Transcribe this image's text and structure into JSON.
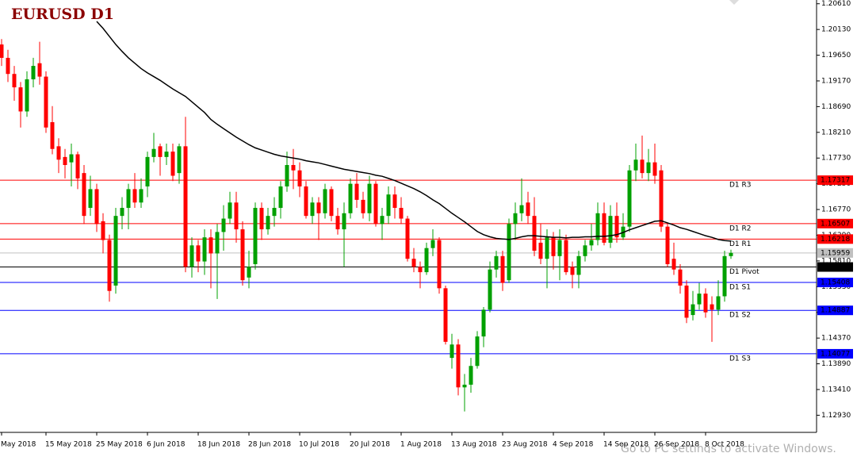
{
  "chart_data": {
    "type": "candlestick",
    "title": "EURUSD D1",
    "watermark": "Go to PC settings to activate Windows.",
    "categories": [
      "May 2018",
      null,
      null,
      null,
      null,
      null,
      null,
      "15 May 2018",
      null,
      null,
      null,
      null,
      null,
      null,
      null,
      "25 May 2018",
      null,
      null,
      null,
      null,
      null,
      null,
      null,
      "6 Jun 2018",
      null,
      null,
      null,
      null,
      null,
      null,
      null,
      "18 Jun 2018",
      null,
      null,
      null,
      null,
      null,
      null,
      null,
      "28 Jun 2018",
      null,
      null,
      null,
      null,
      null,
      null,
      null,
      "10 Jul 2018",
      null,
      null,
      null,
      null,
      null,
      null,
      null,
      "20 Jul 2018",
      null,
      null,
      null,
      null,
      null,
      null,
      null,
      "1 Aug 2018",
      null,
      null,
      null,
      null,
      null,
      null,
      null,
      "13 Aug 2018",
      null,
      null,
      null,
      null,
      null,
      null,
      null,
      "23 Aug 2018",
      null,
      null,
      null,
      null,
      null,
      null,
      null,
      "4 Sep 2018",
      null,
      null,
      null,
      null,
      null,
      null,
      null,
      "14 Sep 2018",
      null,
      null,
      null,
      null,
      null,
      null,
      null,
      "26 Sep 2018",
      null,
      null,
      null,
      null,
      null,
      null,
      null,
      "8 Oct 2018",
      null,
      null,
      null,
      null
    ],
    "candles": {
      "up_color": "#00a000",
      "down_color": "#ff0000",
      "open": [
        1.1985,
        1.196,
        1.193,
        1.1905,
        1.186,
        1.192,
        1.195,
        1.1925,
        1.184,
        1.1795,
        1.1775,
        1.1765,
        1.178,
        1.1745,
        1.168,
        1.1715,
        1.1655,
        1.162,
        1.1535,
        1.1665,
        1.168,
        1.1715,
        1.169,
        1.172,
        1.1775,
        1.1795,
        1.1775,
        1.1785,
        1.1745,
        1.1795,
        1.157,
        1.161,
        1.158,
        1.1625,
        1.1595,
        1.1635,
        1.166,
        1.169,
        1.164,
        1.155,
        1.1575,
        1.168,
        1.164,
        1.1665,
        1.168,
        1.172,
        1.176,
        1.175,
        1.172,
        1.1665,
        1.169,
        1.167,
        1.1715,
        1.1665,
        1.164,
        1.167,
        1.1725,
        1.1695,
        1.167,
        1.1725,
        1.165,
        1.1665,
        1.1705,
        1.168,
        1.166,
        1.1585,
        1.157,
        1.156,
        1.1605,
        1.162,
        1.153,
        1.14,
        1.1425,
        1.1345,
        1.135,
        1.1385,
        1.144,
        1.149,
        1.1565,
        1.159,
        1.1545,
        1.165,
        1.167,
        1.169,
        1.1665,
        1.1615,
        1.1585,
        1.1625,
        1.159,
        1.162,
        1.157,
        1.1555,
        1.159,
        1.161,
        1.162,
        1.167,
        1.1615,
        1.1665,
        1.1625,
        1.1645,
        1.175,
        1.177,
        1.1745,
        1.1765,
        1.175,
        1.1645,
        1.1585,
        1.1565,
        1.1535,
        1.148,
        1.15,
        1.152,
        1.15,
        1.149,
        1.1515,
        1.159
      ],
      "high": [
        1.1995,
        1.1975,
        1.1945,
        1.1915,
        1.1935,
        1.196,
        1.199,
        1.1935,
        1.187,
        1.181,
        1.179,
        1.18,
        1.1785,
        1.176,
        1.174,
        1.1725,
        1.167,
        1.163,
        1.168,
        1.17,
        1.1725,
        1.1745,
        1.1735,
        1.1785,
        1.182,
        1.18,
        1.18,
        1.18,
        1.18,
        1.185,
        1.1625,
        1.162,
        1.164,
        1.164,
        1.165,
        1.1685,
        1.171,
        1.171,
        1.1655,
        1.16,
        1.169,
        1.169,
        1.168,
        1.17,
        1.173,
        1.1785,
        1.179,
        1.1765,
        1.173,
        1.17,
        1.17,
        1.1725,
        1.172,
        1.168,
        1.169,
        1.1735,
        1.1745,
        1.171,
        1.174,
        1.173,
        1.168,
        1.172,
        1.172,
        1.17,
        1.1665,
        1.1605,
        1.158,
        1.1615,
        1.164,
        1.1625,
        1.1535,
        1.1445,
        1.1435,
        1.137,
        1.14,
        1.145,
        1.1495,
        1.158,
        1.16,
        1.16,
        1.166,
        1.169,
        1.1735,
        1.171,
        1.17,
        1.165,
        1.164,
        1.1635,
        1.164,
        1.163,
        1.158,
        1.16,
        1.162,
        1.165,
        1.169,
        1.169,
        1.1685,
        1.169,
        1.167,
        1.176,
        1.18,
        1.1815,
        1.179,
        1.18,
        1.176,
        1.165,
        1.1615,
        1.1575,
        1.1545,
        1.1525,
        1.154,
        1.153,
        1.1515,
        1.1545,
        1.16,
        1.1602
      ],
      "low": [
        1.1945,
        1.1915,
        1.188,
        1.183,
        1.185,
        1.1905,
        1.191,
        1.182,
        1.178,
        1.1745,
        1.1735,
        1.172,
        1.1715,
        1.165,
        1.1665,
        1.1635,
        1.1595,
        1.1505,
        1.152,
        1.164,
        1.164,
        1.168,
        1.168,
        1.17,
        1.1765,
        1.174,
        1.176,
        1.173,
        1.1725,
        1.156,
        1.155,
        1.156,
        1.1555,
        1.153,
        1.151,
        1.16,
        1.165,
        1.1615,
        1.1535,
        1.153,
        1.1565,
        1.162,
        1.163,
        1.1645,
        1.166,
        1.171,
        1.1715,
        1.17,
        1.166,
        1.165,
        1.162,
        1.166,
        1.1655,
        1.163,
        1.157,
        1.166,
        1.168,
        1.166,
        1.1655,
        1.1645,
        1.162,
        1.165,
        1.166,
        1.165,
        1.158,
        1.156,
        1.153,
        1.1555,
        1.159,
        1.152,
        1.1425,
        1.138,
        1.133,
        1.13,
        1.1335,
        1.138,
        1.142,
        1.1485,
        1.155,
        1.1525,
        1.154,
        1.162,
        1.1655,
        1.165,
        1.159,
        1.1575,
        1.153,
        1.1565,
        1.1545,
        1.1555,
        1.153,
        1.153,
        1.158,
        1.16,
        1.161,
        1.161,
        1.1605,
        1.1615,
        1.162,
        1.1635,
        1.173,
        1.1735,
        1.173,
        1.1725,
        1.1635,
        1.157,
        1.1555,
        1.152,
        1.1465,
        1.147,
        1.149,
        1.1475,
        1.143,
        1.148,
        1.1505,
        1.1585
      ],
      "close": [
        1.196,
        1.193,
        1.1905,
        1.186,
        1.192,
        1.1945,
        1.1925,
        1.183,
        1.179,
        1.177,
        1.176,
        1.178,
        1.1735,
        1.1665,
        1.1715,
        1.165,
        1.162,
        1.1525,
        1.1665,
        1.168,
        1.1715,
        1.169,
        1.1715,
        1.1775,
        1.179,
        1.1775,
        1.1785,
        1.174,
        1.1795,
        1.157,
        1.161,
        1.158,
        1.1625,
        1.1595,
        1.1635,
        1.166,
        1.169,
        1.164,
        1.1545,
        1.157,
        1.168,
        1.164,
        1.1665,
        1.168,
        1.172,
        1.176,
        1.175,
        1.172,
        1.1665,
        1.169,
        1.167,
        1.1715,
        1.1665,
        1.164,
        1.167,
        1.1725,
        1.1695,
        1.167,
        1.1725,
        1.165,
        1.1665,
        1.1705,
        1.168,
        1.166,
        1.1585,
        1.157,
        1.156,
        1.1605,
        1.162,
        1.153,
        1.143,
        1.1425,
        1.1345,
        1.135,
        1.1385,
        1.144,
        1.149,
        1.1565,
        1.159,
        1.154,
        1.165,
        1.167,
        1.1685,
        1.1665,
        1.16,
        1.1585,
        1.1625,
        1.159,
        1.162,
        1.156,
        1.1555,
        1.159,
        1.161,
        1.162,
        1.167,
        1.1615,
        1.1665,
        1.1625,
        1.1645,
        1.175,
        1.177,
        1.1745,
        1.1765,
        1.174,
        1.1645,
        1.1575,
        1.1565,
        1.1535,
        1.1475,
        1.15,
        1.152,
        1.1485,
        1.149,
        1.1515,
        1.159,
        1.1596
      ]
    },
    "ma": {
      "color": "#000000",
      "values": [
        null,
        null,
        null,
        null,
        null,
        null,
        null,
        null,
        null,
        null,
        null,
        null,
        null,
        null,
        null,
        1.2028,
        1.2015,
        1.2,
        1.1985,
        1.1972,
        1.196,
        1.195,
        1.194,
        1.1932,
        1.1925,
        1.1918,
        1.191,
        1.1902,
        1.1895,
        1.1888,
        1.1878,
        1.1868,
        1.1858,
        1.1845,
        1.1836,
        1.1828,
        1.182,
        1.1812,
        1.1805,
        1.1798,
        1.1792,
        1.1788,
        1.1784,
        1.178,
        1.1777,
        1.1775,
        1.1773,
        1.1771,
        1.1768,
        1.1766,
        1.1764,
        1.1761,
        1.1758,
        1.1755,
        1.1752,
        1.175,
        1.1748,
        1.1746,
        1.1744,
        1.1741,
        1.1739,
        1.1735,
        1.1731,
        1.1726,
        1.1721,
        1.1716,
        1.171,
        1.1703,
        1.1695,
        1.1688,
        1.1679,
        1.167,
        1.1662,
        1.1654,
        1.1645,
        1.1636,
        1.163,
        1.1626,
        1.1623,
        1.1622,
        1.1621,
        1.1623,
        1.1626,
        1.1628,
        1.1628,
        1.1627,
        1.1626,
        1.1625,
        1.1625,
        1.1624,
        1.1625,
        1.1625,
        1.1626,
        1.1626,
        1.1627,
        1.1627,
        1.1628,
        1.163,
        1.1634,
        1.1639,
        1.1643,
        1.1647,
        1.1651,
        1.1655,
        1.1656,
        1.1652,
        1.1648,
        1.1643,
        1.164,
        1.1636,
        1.1632,
        1.1628,
        1.1625,
        1.1621,
        1.1619,
        1.1618
      ]
    },
    "levels": [
      {
        "name": "D1 R3",
        "value": 1.17317,
        "color": "#ff0000"
      },
      {
        "name": "D1 R2",
        "value": 1.16507,
        "color": "#ff0000"
      },
      {
        "name": "D1 R1",
        "value": 1.16218,
        "color": "#ff0000"
      },
      {
        "name": "D1 Pivot",
        "value": 1.15697,
        "color": "#000000"
      },
      {
        "name": "D1 S1",
        "value": 1.15408,
        "color": "#0000ff"
      },
      {
        "name": "D1 S2",
        "value": 1.14887,
        "color": "#0000ff"
      },
      {
        "name": "D1 S3",
        "value": 1.14077,
        "color": "#0000ff"
      }
    ],
    "current_price": {
      "value": 1.15959,
      "color": "#c0c0c0"
    },
    "ylim": [
      1.1261,
      1.2068
    ],
    "yticks": [
      {
        "value": 1.2061,
        "label": "1.20610"
      },
      {
        "value": 1.2013,
        "label": "1.20130"
      },
      {
        "value": 1.1965,
        "label": "1.19650"
      },
      {
        "value": 1.1917,
        "label": "1.19170"
      },
      {
        "value": 1.1869,
        "label": "1.18690"
      },
      {
        "value": 1.1821,
        "label": "1.18210"
      },
      {
        "value": 1.1773,
        "label": "1.17730"
      },
      {
        "value": 1.1725,
        "label": "1.17250"
      },
      {
        "value": 1.1677,
        "label": "1.16770"
      },
      {
        "value": 1.1629,
        "label": "1.16290"
      },
      {
        "value": 1.1581,
        "label": "1.15810"
      },
      {
        "value": 1.1533,
        "label": "1.15330"
      },
      {
        "value": 1.1485,
        "label": "1.14850"
      },
      {
        "value": 1.1437,
        "label": "1.14370"
      },
      {
        "value": 1.1389,
        "label": "1.13890"
      },
      {
        "value": 1.1341,
        "label": "1.13410"
      },
      {
        "value": 1.1293,
        "label": "1.12930"
      }
    ]
  }
}
